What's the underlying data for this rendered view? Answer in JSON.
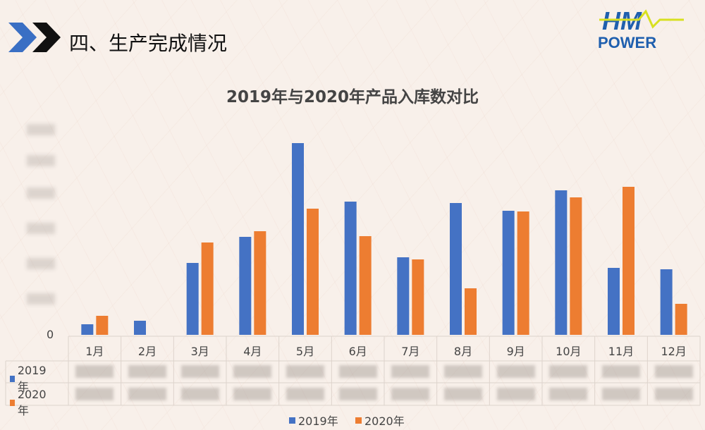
{
  "slide": {
    "title": "四、生产完成情况",
    "logo_text": [
      "HM",
      "POWER"
    ]
  },
  "colors": {
    "series_2019": "#4472c4",
    "series_2020": "#ed7d31",
    "accent_chevron_blue": "#3a6fc4"
  },
  "chart_data": {
    "type": "bar",
    "title": "2019年与2020年产品入库数对比",
    "categories": [
      "1月",
      "2月",
      "3月",
      "4月",
      "5月",
      "6月",
      "7月",
      "8月",
      "9月",
      "10月",
      "11月",
      "12月"
    ],
    "series": [
      {
        "name": "2019年",
        "values": [
          15,
          20,
          102,
          139,
          272,
          189,
          110,
          187,
          176,
          205,
          95,
          93
        ]
      },
      {
        "name": "2020年",
        "values": [
          27,
          0,
          131,
          147,
          179,
          140,
          107,
          66,
          175,
          195,
          210,
          44
        ]
      }
    ],
    "y_tick_labels_visible": [
      "0"
    ],
    "y_values_note": "relative scale; axis tick values and data table values are blurred",
    "ylim": [
      0,
      300
    ],
    "grid": false,
    "legend": "bottom",
    "data_table": true
  }
}
